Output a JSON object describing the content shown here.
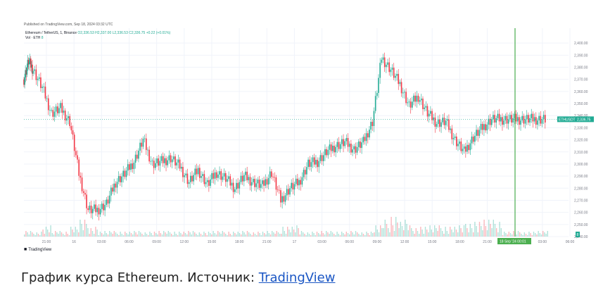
{
  "published": "Published on TradingView.com, Sep 18, 2024 03:32 UTC",
  "symbol": {
    "name": "Ethereum / TetherUS, 1, Binance",
    "ohlc": "O2,336.53 H2,337.00 L2,336.53 C2,336.75 +0.22 (+0.01%)"
  },
  "volume_label": "Vol · ETH",
  "volume_value": "8",
  "price_badge": {
    "symbol": "ETHUSDT",
    "value": "2,336.75"
  },
  "crosshair_badge": "18 Sep '24  00:01",
  "volume_axis_badge": "8",
  "logo_text": "TradingView",
  "caption": {
    "text": "График курса Ethereum. Источник: ",
    "link": "TradingView"
  },
  "colors": {
    "up": "#22ab94",
    "down": "#f23645",
    "crosshair": "#4caf50"
  },
  "chart_data": {
    "type": "line",
    "title": "",
    "x_ticks": [
      "21:00",
      "16",
      "03:00",
      "06:00",
      "09:00",
      "12:00",
      "15:00",
      "18:00",
      "21:00",
      "17",
      "03:00",
      "06:00",
      "09:00",
      "12:00",
      "15:00",
      "18:00",
      "21:00",
      "18 Sep '24",
      "03:00",
      "06:00"
    ],
    "y_ticks": [
      "2,400.00",
      "2,390.00",
      "2,380.00",
      "2,370.00",
      "2,360.00",
      "2,350.00",
      "2,340.00",
      "2,330.00",
      "2,320.00",
      "2,310.00",
      "2,300.00",
      "2,290.00",
      "2,280.00",
      "2,270.00",
      "2,260.00",
      "2,250.00",
      "2,240.00"
    ],
    "ylim": [
      2240,
      2410
    ],
    "x_range_hours": [
      0,
      58
    ],
    "series": [
      {
        "x": [
          0,
          0.5,
          1,
          2,
          3,
          4,
          5,
          6,
          7,
          8,
          9,
          10,
          11,
          12,
          13,
          14,
          15,
          16,
          17,
          18,
          19,
          20,
          21,
          22,
          23,
          24,
          25,
          26,
          27,
          28,
          29,
          30,
          31,
          32,
          33,
          34,
          35,
          36,
          37,
          38,
          39,
          40,
          41,
          42,
          43,
          44,
          45,
          46,
          47,
          48,
          49,
          50,
          51,
          52,
          53,
          54,
          55,
          56,
          57
        ],
        "values": [
          2370,
          2385,
          2378,
          2363,
          2342,
          2346,
          2335,
          2292,
          2262,
          2262,
          2267,
          2285,
          2292,
          2302,
          2320,
          2300,
          2302,
          2305,
          2298,
          2285,
          2295,
          2283,
          2293,
          2288,
          2280,
          2290,
          2285,
          2282,
          2293,
          2270,
          2280,
          2285,
          2300,
          2302,
          2310,
          2315,
          2318,
          2312,
          2318,
          2335,
          2388,
          2378,
          2366,
          2348,
          2356,
          2342,
          2334,
          2335,
          2320,
          2310,
          2322,
          2330,
          2337,
          2337,
          2337,
          2337,
          2337,
          2337,
          2337
        ]
      }
    ],
    "volume": {
      "x": [
        0,
        2,
        3,
        4,
        5,
        6,
        7,
        8,
        10,
        12,
        14,
        16,
        18,
        20,
        22,
        24,
        26,
        28,
        30,
        32,
        34,
        36,
        38,
        39,
        40,
        41,
        42,
        44,
        46,
        48,
        50,
        52
      ],
      "values": [
        1,
        2,
        1,
        1,
        2,
        3,
        2,
        1,
        1,
        1,
        1,
        1,
        1,
        1,
        1,
        1,
        1,
        2,
        1,
        1,
        1,
        1,
        2,
        3,
        4,
        3,
        2,
        2,
        2,
        3,
        3,
        1
      ]
    }
  }
}
